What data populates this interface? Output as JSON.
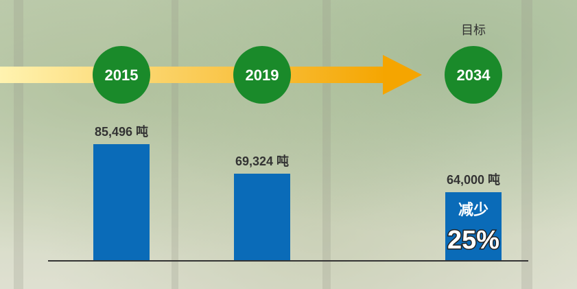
{
  "chart_data": {
    "type": "bar",
    "unit": "吨",
    "categories": [
      "2015",
      "2019",
      "2034"
    ],
    "values": [
      85496,
      69324,
      64000
    ],
    "value_labels": [
      "85,496 吨",
      "69,324 吨",
      "64,000 吨"
    ],
    "target_label": "目标",
    "target_category": "2034",
    "reduction_label": "减少",
    "reduction_percent": "25%",
    "ylim": [
      0,
      100000
    ],
    "grid": false,
    "colors": {
      "bar": "#0a6bb8",
      "year_circle": "#1a8a2a",
      "arrow_start": "#fff3b0",
      "arrow_end": "#f5a500",
      "baseline": "#333333"
    }
  }
}
